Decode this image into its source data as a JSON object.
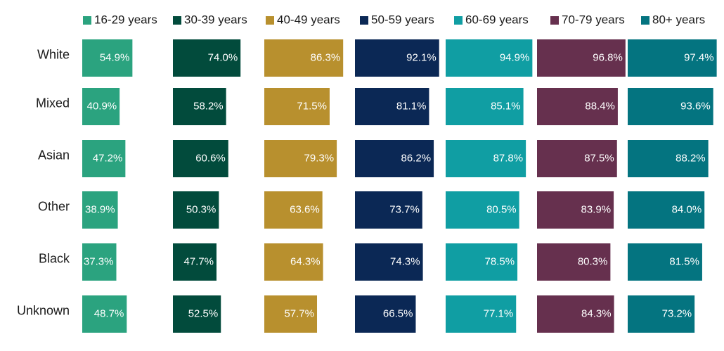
{
  "chart_data": {
    "type": "bar",
    "categories": [
      "White",
      "Mixed",
      "Asian",
      "Other",
      "Black",
      "Unknown"
    ],
    "series": [
      {
        "name": "16-29 years",
        "color": "#2ba37f",
        "values": [
          54.9,
          40.9,
          47.2,
          38.9,
          37.3,
          48.7
        ]
      },
      {
        "name": "30-39 years",
        "color": "#024b3c",
        "values": [
          74.0,
          58.2,
          60.6,
          50.3,
          47.7,
          52.5
        ]
      },
      {
        "name": "40-49 years",
        "color": "#b8902e",
        "values": [
          86.3,
          71.5,
          79.3,
          63.6,
          64.3,
          57.7
        ]
      },
      {
        "name": "50-59 years",
        "color": "#0b2855",
        "values": [
          92.1,
          81.1,
          86.2,
          73.7,
          74.3,
          66.5
        ]
      },
      {
        "name": "60-69 years",
        "color": "#109ea3",
        "values": [
          94.9,
          85.1,
          87.8,
          80.5,
          78.5,
          77.1
        ]
      },
      {
        "name": "70-79 years",
        "color": "#66304e",
        "values": [
          96.8,
          88.4,
          87.5,
          83.9,
          80.3,
          84.3
        ]
      },
      {
        "name": "80+ years",
        "color": "#047480",
        "values": [
          97.4,
          93.6,
          88.2,
          84.0,
          81.5,
          73.2
        ]
      }
    ],
    "value_suffix": "%",
    "ylim": [
      0,
      100
    ],
    "legend_position": "top",
    "grid": false
  }
}
